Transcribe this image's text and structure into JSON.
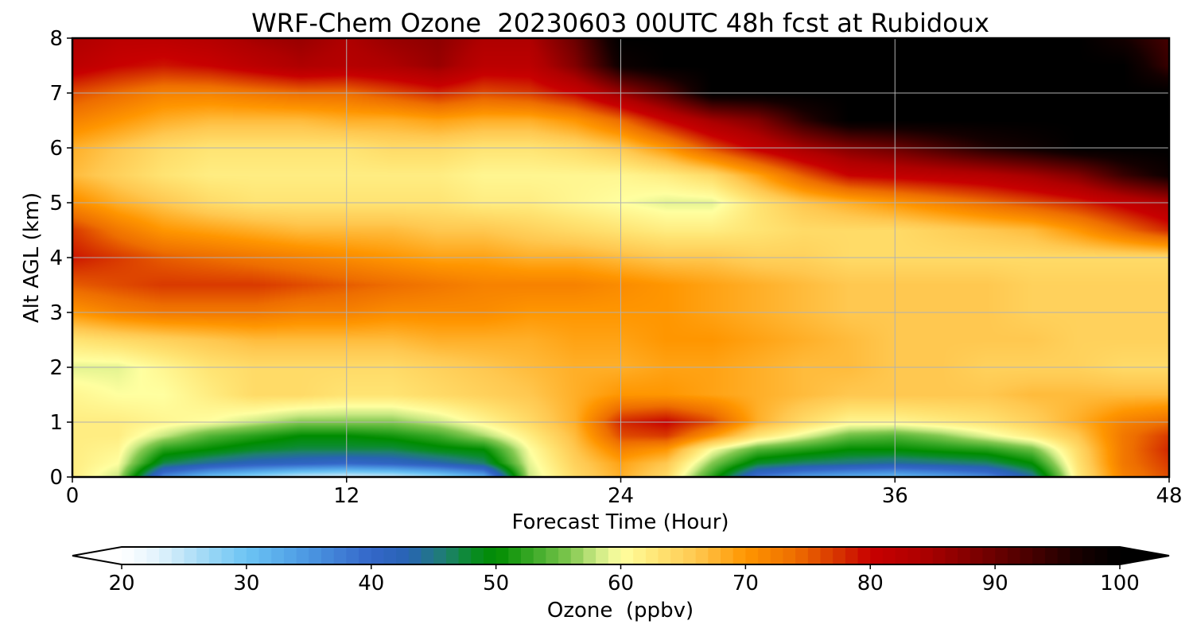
{
  "chart_data": {
    "type": "heatmap",
    "title": "WRF-Chem Ozone  20230603 00UTC 48h fcst at Rubidoux",
    "xlabel": "Forecast Time (Hour)",
    "ylabel": "Alt AGL (km)",
    "xlim": [
      0,
      48
    ],
    "ylim": [
      0,
      8
    ],
    "xticks": [
      0,
      12,
      24,
      36,
      48
    ],
    "yticks": [
      0,
      1,
      2,
      3,
      4,
      5,
      6,
      7,
      8
    ],
    "grid": true,
    "x": [
      0,
      2,
      4,
      6,
      8,
      10,
      12,
      14,
      16,
      18,
      20,
      22,
      24,
      26,
      28,
      30,
      32,
      34,
      36,
      38,
      40,
      42,
      44,
      46,
      48
    ],
    "y": [
      0,
      0.25,
      0.5,
      0.75,
      1,
      1.5,
      2,
      2.5,
      3,
      3.5,
      4,
      4.5,
      5,
      5.5,
      6,
      6.5,
      7,
      7.5,
      8
    ],
    "z": [
      [
        62,
        58,
        36,
        30,
        27,
        24,
        23,
        24,
        27,
        32,
        58,
        64,
        68,
        64,
        52,
        38,
        34,
        32,
        31,
        33,
        36,
        44,
        62,
        72,
        76
      ],
      [
        62,
        60,
        47,
        44,
        42,
        41,
        40,
        41,
        43,
        46,
        59,
        65,
        69,
        66,
        56,
        48,
        46,
        45,
        44,
        45,
        46,
        50,
        63,
        73,
        77
      ],
      [
        62,
        61,
        52,
        50,
        48,
        47,
        47,
        47,
        49,
        50,
        60,
        66,
        72,
        70,
        60,
        54,
        52,
        50,
        50,
        51,
        52,
        55,
        64,
        73,
        78
      ],
      [
        62,
        62,
        58,
        54,
        52,
        50,
        50,
        51,
        53,
        57,
        62,
        67,
        76,
        77,
        70,
        63,
        59,
        55,
        54,
        56,
        59,
        62,
        66,
        73,
        77
      ],
      [
        62,
        62,
        61,
        60,
        58,
        56,
        56,
        56,
        58,
        61,
        64,
        68,
        78,
        80,
        76,
        68,
        64,
        61,
        61,
        62,
        63,
        65,
        68,
        72,
        74
      ],
      [
        61,
        60,
        60,
        62,
        64,
        64,
        63,
        63,
        64,
        65,
        66,
        68,
        70,
        70,
        69,
        68,
        67,
        66,
        66,
        66,
        66,
        67,
        67,
        67,
        67
      ],
      [
        59,
        59,
        61,
        63,
        64,
        64,
        64,
        64,
        65,
        66,
        67,
        68,
        68,
        69,
        69,
        68,
        67,
        67,
        66,
        66,
        65,
        65,
        65,
        64,
        64
      ],
      [
        63,
        64,
        65,
        66,
        67,
        67,
        67,
        67,
        68,
        68,
        68,
        69,
        69,
        70,
        70,
        69,
        68,
        67,
        66,
        66,
        66,
        66,
        65,
        65,
        65
      ],
      [
        70,
        72,
        73,
        73,
        73,
        72,
        72,
        71,
        71,
        71,
        70,
        70,
        70,
        70,
        69,
        68,
        67,
        66,
        66,
        66,
        66,
        65,
        65,
        65,
        65
      ],
      [
        75,
        76,
        77,
        77,
        77,
        76,
        75,
        74,
        73,
        72,
        72,
        72,
        71,
        70,
        69,
        68,
        67,
        66,
        66,
        66,
        66,
        65,
        65,
        65,
        65
      ],
      [
        79,
        77,
        75,
        74,
        73,
        72,
        71,
        70,
        69,
        69,
        68,
        68,
        67,
        66,
        66,
        65,
        65,
        64,
        64,
        64,
        64,
        64,
        64,
        64,
        64
      ],
      [
        77,
        73,
        70,
        69,
        68,
        67,
        67,
        67,
        66,
        66,
        65,
        64,
        63,
        62,
        62,
        63,
        64,
        64,
        64,
        65,
        66,
        67,
        70,
        74,
        78
      ],
      [
        71,
        68,
        66,
        64,
        63,
        63,
        63,
        63,
        63,
        62,
        62,
        61,
        60,
        59,
        59,
        63,
        66,
        68,
        70,
        72,
        74,
        76,
        78,
        81,
        84
      ],
      [
        67,
        65,
        63,
        62,
        62,
        62,
        62,
        62,
        62,
        61,
        61,
        61,
        61,
        62,
        64,
        69,
        75,
        80,
        81,
        82,
        83,
        85,
        88,
        94,
        98
      ],
      [
        68,
        66,
        64,
        63,
        63,
        63,
        63,
        64,
        64,
        63,
        63,
        64,
        66,
        70,
        76,
        81,
        85,
        88,
        90,
        93,
        96,
        98,
        100,
        100,
        100
      ],
      [
        72,
        70,
        68,
        67,
        67,
        67,
        68,
        68,
        69,
        68,
        68,
        70,
        74,
        80,
        85,
        88,
        95,
        100,
        100,
        100,
        100,
        100,
        100,
        100,
        100
      ],
      [
        76,
        74,
        72,
        72,
        73,
        74,
        74,
        76,
        78,
        76,
        77,
        80,
        86,
        92,
        100,
        100,
        100,
        100,
        100,
        100,
        100,
        100,
        100,
        100,
        100
      ],
      [
        82,
        80,
        79,
        80,
        82,
        84,
        83,
        84,
        86,
        82,
        82,
        88,
        98,
        100,
        100,
        100,
        100,
        100,
        100,
        100,
        100,
        100,
        100,
        100,
        94
      ],
      [
        84,
        82,
        82,
        83,
        85,
        86,
        84,
        86,
        87,
        84,
        84,
        90,
        100,
        100,
        100,
        100,
        100,
        100,
        100,
        100,
        100,
        100,
        100,
        97,
        93
      ]
    ],
    "colorbar": {
      "label": "Ozone  (ppbv)",
      "min": 20,
      "max": 100,
      "ticks": [
        20,
        30,
        40,
        50,
        60,
        70,
        80,
        90,
        100
      ],
      "extend": "both"
    }
  }
}
